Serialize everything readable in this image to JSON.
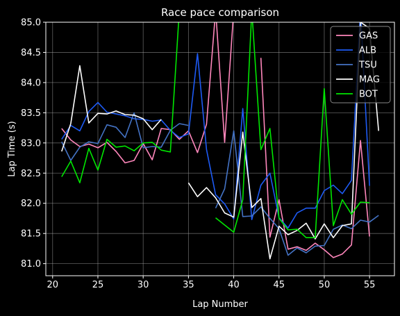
{
  "chart_data": {
    "type": "line",
    "title": "Race pace comparison",
    "xlabel": "Lap Number",
    "ylabel": "Lap Time (s)",
    "xlim": [
      19.25,
      57.75
    ],
    "ylim": [
      80.8,
      85.0
    ],
    "x_ticks": [
      20,
      25,
      30,
      35,
      40,
      45,
      50,
      55
    ],
    "y_ticks": [
      81.0,
      81.5,
      82.0,
      82.5,
      83.0,
      83.5,
      84.0,
      84.5,
      85.0
    ],
    "x_tick_labels": [
      "20",
      "25",
      "30",
      "35",
      "40",
      "45",
      "50",
      "55"
    ],
    "y_tick_labels": [
      "81.0",
      "81.5",
      "82.0",
      "82.5",
      "83.0",
      "83.5",
      "84.0",
      "84.5",
      "85.0"
    ],
    "grid": true,
    "legend_position": "top-right",
    "background": "#000000",
    "x": [
      21,
      22,
      23,
      24,
      25,
      26,
      27,
      28,
      29,
      30,
      31,
      32,
      33,
      34,
      35,
      36,
      37,
      38,
      39,
      40,
      41,
      42,
      43,
      44,
      45,
      46,
      47,
      48,
      49,
      50,
      51,
      52,
      53,
      54,
      55,
      56
    ],
    "series": [
      {
        "name": "GAS",
        "color": "#ff87bc",
        "values": [
          83.24,
          83.05,
          82.94,
          82.98,
          82.92,
          83.01,
          82.86,
          82.67,
          82.71,
          82.99,
          82.72,
          83.24,
          83.22,
          83.06,
          83.2,
          82.84,
          83.31,
          85.2,
          83.01,
          85.2,
          null,
          null,
          84.41,
          81.44,
          82.06,
          81.24,
          81.28,
          81.22,
          81.34,
          81.23,
          81.1,
          81.16,
          81.31,
          83.04,
          81.45,
          null
        ]
      },
      {
        "name": "ALB",
        "color": "#1e5bf5",
        "values": [
          83.06,
          83.29,
          83.2,
          83.52,
          83.67,
          83.51,
          83.48,
          83.45,
          83.4,
          83.39,
          83.36,
          83.38,
          83.21,
          83.09,
          83.15,
          84.48,
          82.89,
          82.14,
          81.99,
          81.74,
          83.57,
          81.73,
          82.3,
          82.5,
          81.76,
          81.59,
          81.84,
          81.92,
          81.92,
          82.21,
          82.3,
          82.16,
          82.38,
          85.2,
          82.29,
          null
        ]
      },
      {
        "name": "TSU",
        "color": "#4473c5",
        "values": [
          83.02,
          82.71,
          82.93,
          83.02,
          82.99,
          83.3,
          83.26,
          83.09,
          83.5,
          82.92,
          82.94,
          82.93,
          83.21,
          83.32,
          83.29,
          null,
          null,
          81.92,
          82.24,
          83.2,
          81.78,
          81.79,
          81.94,
          81.75,
          81.58,
          81.14,
          81.26,
          81.18,
          81.29,
          81.3,
          81.57,
          81.64,
          81.58,
          81.72,
          81.69,
          81.8
        ]
      },
      {
        "name": "MAG",
        "color": "#ffffff",
        "values": [
          82.86,
          83.32,
          84.28,
          83.33,
          83.49,
          83.48,
          83.53,
          83.47,
          83.46,
          83.4,
          83.22,
          83.39,
          null,
          null,
          82.34,
          82.11,
          82.26,
          82.09,
          81.84,
          81.77,
          83.18,
          81.93,
          82.08,
          81.08,
          81.62,
          81.48,
          81.55,
          81.67,
          81.41,
          81.66,
          81.43,
          81.63,
          81.66,
          85.0,
          84.9,
          83.2
        ]
      },
      {
        "name": "BOT",
        "color": "#00e701",
        "values": [
          82.44,
          82.7,
          82.34,
          82.91,
          82.55,
          83.06,
          82.93,
          82.95,
          82.87,
          83.0,
          83.01,
          82.88,
          82.85,
          85.2,
          85.2,
          null,
          null,
          81.76,
          81.64,
          81.52,
          82.06,
          85.2,
          82.89,
          83.24,
          81.75,
          81.56,
          81.57,
          81.43,
          81.43,
          83.9,
          81.63,
          82.06,
          81.82,
          82.02,
          82.01,
          null
        ]
      }
    ]
  }
}
